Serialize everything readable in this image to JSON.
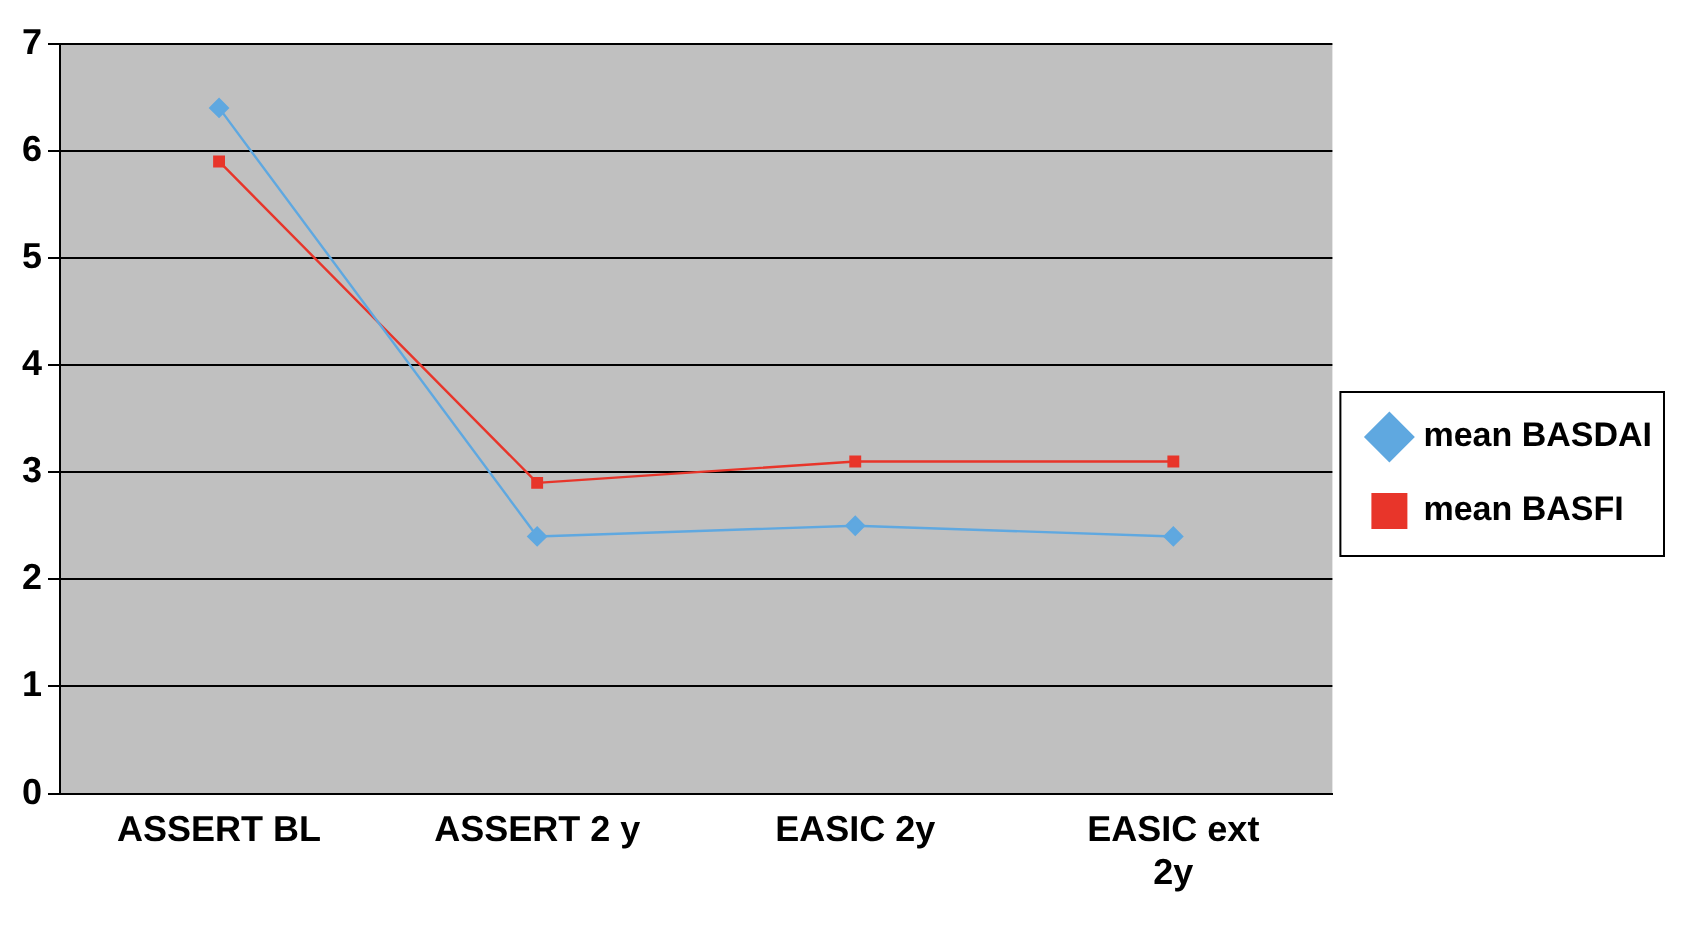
{
  "chart_data": {
    "type": "line",
    "categories": [
      "ASSERT BL",
      "ASSERT 2 y",
      "EASIC 2y",
      "EASIC ext 2y"
    ],
    "series": [
      {
        "name": "mean BASDAI",
        "color": "#5fa8e0",
        "values": [
          6.4,
          2.4,
          2.5,
          2.4
        ],
        "marker": "diamond"
      },
      {
        "name": "mean BASFI",
        "color": "#e8352a",
        "values": [
          5.9,
          2.9,
          3.1,
          3.1
        ],
        "marker": "square"
      }
    ],
    "ylim": [
      0,
      7
    ],
    "yticks": [
      0,
      1,
      2,
      3,
      4,
      5,
      6,
      7
    ],
    "grid": "y",
    "legend": "right",
    "line_style": "solid"
  }
}
